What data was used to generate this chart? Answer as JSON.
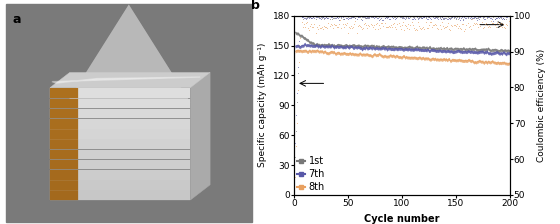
{
  "label_a": "a",
  "label_b": "b",
  "xlabel": "Cycle number",
  "ylabel_left": "Specific capacity (mAh g⁻¹)",
  "ylabel_right": "Coulombic efficiency (%)",
  "ylim_left": [
    0,
    180
  ],
  "ylim_right": [
    50,
    100
  ],
  "yticks_left": [
    0,
    30,
    60,
    90,
    120,
    150,
    180
  ],
  "yticks_right": [
    50,
    60,
    70,
    80,
    90,
    100
  ],
  "xlim": [
    0,
    200
  ],
  "xticks": [
    0,
    50,
    100,
    150,
    200
  ],
  "colors": [
    "#787878",
    "#5858a8",
    "#e8a060"
  ],
  "labels": [
    "1st",
    "7th",
    "8th"
  ],
  "cap1_start": 163,
  "cap1_stable": 151,
  "cap1_end": 145,
  "cap7_start": 149,
  "cap7_stable": 150,
  "cap7_end": 142,
  "cap8_start": 145,
  "cap8_stable": 144,
  "cap8_end": 132,
  "ce_stable_1": 99.7,
  "ce_stable_7": 99.5,
  "ce_stable_8": 97.2,
  "background_color": "#ffffff",
  "bg_gray": "#8c8c8c",
  "axis_fontsize": 7,
  "tick_fontsize": 6.5,
  "legend_fontsize": 7
}
